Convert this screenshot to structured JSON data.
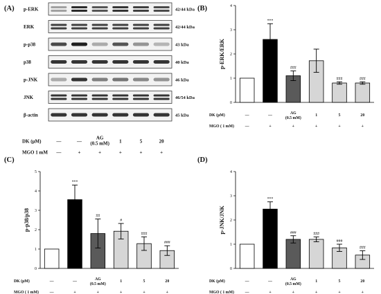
{
  "panels": {
    "A": "(A)",
    "B": "(B)",
    "C": "(C)",
    "D": "(D)"
  },
  "blot": {
    "rows": [
      {
        "name": "p-ERK",
        "kda": "42/44 kDa"
      },
      {
        "name": "ERK",
        "kda": "42/44 kDa"
      },
      {
        "name": "p-p38",
        "kda": "43 kDa"
      },
      {
        "name": "p38",
        "kda": "40 kDa"
      },
      {
        "name": "p-JNK",
        "kda": "46 kDa"
      },
      {
        "name": "JNK",
        "kda": "46/54 kDa"
      },
      {
        "name": "β-actin",
        "kda": "45 kDa"
      }
    ],
    "intensities": [
      [
        0.35,
        0.9,
        0.7,
        0.85,
        0.8,
        0.75
      ],
      [
        0.8,
        0.8,
        0.8,
        0.8,
        0.8,
        0.8
      ],
      [
        0.75,
        0.95,
        0.3,
        0.7,
        0.4,
        0.25
      ],
      [
        0.85,
        0.85,
        0.85,
        0.85,
        0.85,
        0.85
      ],
      [
        0.3,
        0.85,
        0.5,
        0.55,
        0.45,
        0.4
      ],
      [
        0.85,
        0.85,
        0.85,
        0.85,
        0.85,
        0.85
      ],
      [
        0.85,
        0.85,
        0.85,
        0.85,
        0.85,
        0.85
      ]
    ],
    "dk_label": "DK (μM)",
    "mgo_label": "MGO 1 mM",
    "dk_values": [
      "—",
      "—",
      "AG (0.5 mM)",
      "1",
      "5",
      "20"
    ],
    "mgo_values": [
      "—",
      "+",
      "+",
      "+",
      "+",
      "+"
    ]
  },
  "conditions": {
    "dk_label_B": "DK (μM)",
    "mgo_label_B": "MGO ( 1 mM)",
    "dk_label_C": "DK (μM)",
    "mgo_label_C": "MGO ( 1 mM)",
    "dk_label_D": "DK (μM)",
    "mgo_label_D": "MGO ( 1 mM)",
    "dk_values": [
      "—",
      "—",
      "AG",
      "1",
      "5",
      "20"
    ],
    "ag_conc": "(0.5 mM)",
    "mgo_values": [
      "—",
      "+",
      "+",
      "+",
      "+",
      "+"
    ]
  },
  "colors": {
    "white_bar": "#ffffff",
    "black_bar": "#000000",
    "ag_bar": "#5a5a5a",
    "dk_bar": "#d6d6d6"
  },
  "chart_data": [
    {
      "panel": "B",
      "type": "bar",
      "ylabel": "p-ERK/ERK",
      "ylim": [
        0,
        4
      ],
      "yticks": [
        0,
        1,
        2,
        3,
        4
      ],
      "values": [
        1.0,
        2.6,
        1.1,
        1.72,
        0.8,
        0.8
      ],
      "errors": [
        0,
        0.65,
        0.2,
        0.48,
        0.05,
        0.05
      ],
      "annotations": [
        "",
        "***",
        "###",
        "",
        "###",
        "###"
      ]
    },
    {
      "panel": "C",
      "type": "bar",
      "ylabel": "p-p38/p38",
      "ylim": [
        0,
        5
      ],
      "yticks": [
        0,
        1,
        2,
        3,
        4,
        5
      ],
      "values": [
        1.0,
        3.55,
        1.8,
        1.92,
        1.28,
        0.92
      ],
      "errors": [
        0,
        0.75,
        0.75,
        0.4,
        0.35,
        0.25
      ],
      "annotations": [
        "",
        "***",
        "##",
        "#",
        "###",
        "###"
      ]
    },
    {
      "panel": "D",
      "type": "bar",
      "ylabel": "p-JNK/JNK",
      "ylim": [
        0,
        4
      ],
      "yticks": [
        0,
        1,
        2,
        3,
        4
      ],
      "values": [
        1.0,
        2.45,
        1.2,
        1.2,
        0.85,
        0.55
      ],
      "errors": [
        0,
        0.3,
        0.15,
        0.1,
        0.15,
        0.18
      ],
      "annotations": [
        "",
        "***",
        "###",
        "###",
        "###",
        "###"
      ]
    }
  ]
}
